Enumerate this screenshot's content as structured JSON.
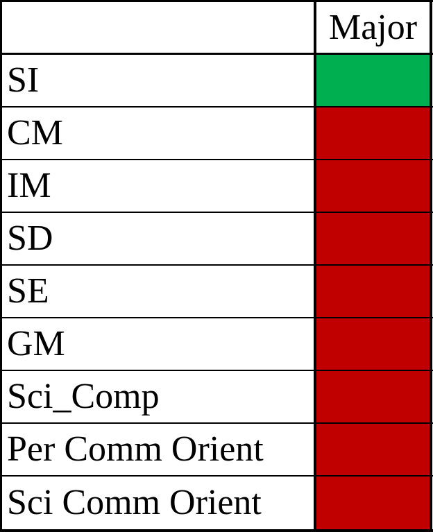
{
  "table": {
    "header": {
      "label": "",
      "status": "Major"
    },
    "colors": {
      "pass": "#00b050",
      "fail": "#c00000"
    },
    "rows": [
      {
        "label": "SI",
        "status": "pass"
      },
      {
        "label": "CM",
        "status": "fail"
      },
      {
        "label": "IM",
        "status": "fail"
      },
      {
        "label": "SD",
        "status": "fail"
      },
      {
        "label": "SE",
        "status": "fail"
      },
      {
        "label": "GM",
        "status": "fail"
      },
      {
        "label": "Sci_Comp",
        "status": "fail"
      },
      {
        "label": "Per Comm Orient",
        "status": "fail"
      },
      {
        "label": "Sci Comm Orient",
        "status": "fail"
      }
    ]
  }
}
